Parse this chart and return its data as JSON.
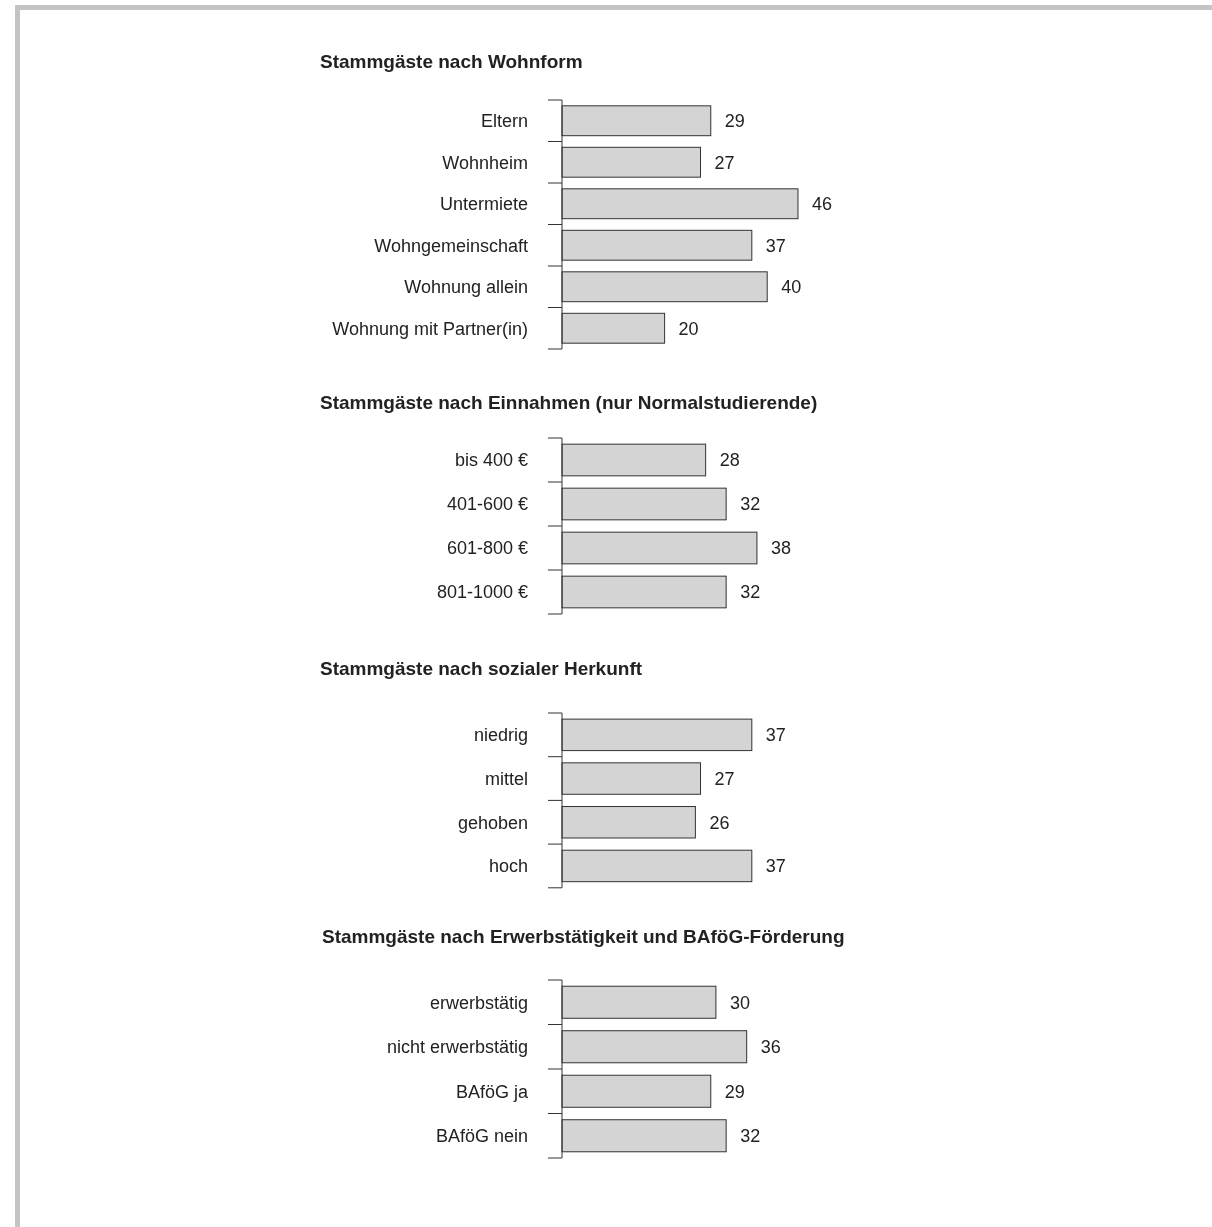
{
  "chart_data": [
    {
      "type": "bar",
      "orientation": "horizontal",
      "title": "Stammgäste nach Wohnform",
      "categories": [
        "Eltern",
        "Wohnheim",
        "Untermiete",
        "Wohngemeinschaft",
        "Wohnung allein",
        "Wohnung mit Partner(in)"
      ],
      "values": [
        29,
        27,
        46,
        37,
        40,
        20
      ],
      "color": "#d4d4d4",
      "data_labels": true
    },
    {
      "type": "bar",
      "orientation": "horizontal",
      "title": "Stammgäste nach Einnahmen (nur Normalstudierende)",
      "categories": [
        "bis 400 €",
        "401-600 €",
        "601-800 €",
        "801-1000 €"
      ],
      "values": [
        28,
        32,
        38,
        32
      ],
      "color": "#d4d4d4",
      "data_labels": true
    },
    {
      "type": "bar",
      "orientation": "horizontal",
      "title": "Stammgäste nach sozialer Herkunft",
      "categories": [
        "niedrig",
        "mittel",
        "gehoben",
        "hoch"
      ],
      "values": [
        37,
        27,
        26,
        37
      ],
      "color": "#d4d4d4",
      "data_labels": true
    },
    {
      "type": "bar",
      "orientation": "horizontal",
      "title": "Stammgäste nach Erwerbstätigkeit und BAföG-Förderung",
      "categories": [
        "erwerbstätig",
        "nicht erwerbstätig",
        "BAföG ja",
        "BAföG nein"
      ],
      "values": [
        30,
        36,
        29,
        32
      ],
      "color": "#d4d4d4",
      "data_labels": true
    }
  ]
}
